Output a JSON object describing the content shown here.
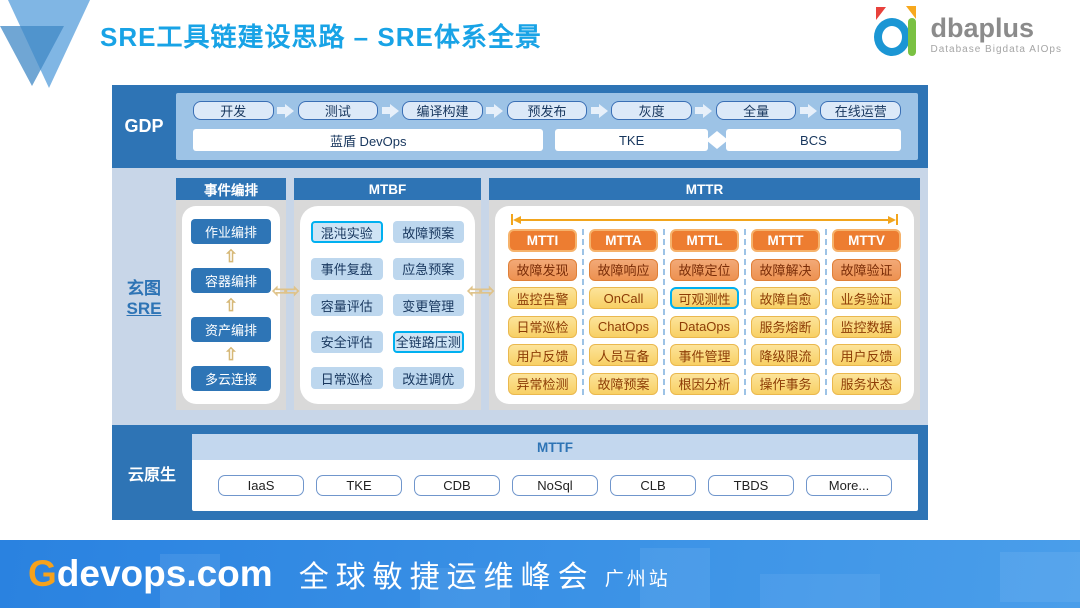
{
  "header": {
    "title": "SRE工具链建设思路 – SRE体系全景",
    "logo": {
      "name": "dbaplus",
      "tagline": "Database  Bigdata  AIOps"
    }
  },
  "icons": {
    "up_arrow": "⇧",
    "left_arrow": "⇦",
    "right_arrow": "⇨"
  },
  "gdp": {
    "label": "GDP",
    "stages": [
      "开发",
      "测试",
      "编译构建",
      "预发布",
      "灰度",
      "全量",
      "在线运营"
    ],
    "devops": "蓝盾 DevOps",
    "tke": "TKE",
    "bcs": "BCS"
  },
  "sre": {
    "label_top": "玄图",
    "label_bottom": "SRE",
    "orchestration": {
      "header": "事件编排",
      "items": [
        "作业编排",
        "容器编排",
        "资产编排",
        "多云连接"
      ]
    },
    "mtbf": {
      "header": "MTBF",
      "items": [
        "混沌实验",
        "故障预案",
        "事件复盘",
        "应急预案",
        "容量评估",
        "变更管理",
        "安全评估",
        "全链路压测",
        "日常巡检",
        "改进调优"
      ]
    },
    "mttr": {
      "header": "MTTR",
      "columns": [
        {
          "header": "MTTI",
          "items": [
            "故障发现",
            "监控告警",
            "日常巡检",
            "用户反馈",
            "异常检测"
          ]
        },
        {
          "header": "MTTA",
          "items": [
            "故障响应",
            "OnCall",
            "ChatOps",
            "人员互备",
            "故障预案"
          ]
        },
        {
          "header": "MTTL",
          "items": [
            "故障定位",
            "可观测性",
            "DataOps",
            "事件管理",
            "根因分析"
          ]
        },
        {
          "header": "MTTT",
          "items": [
            "故障解决",
            "故障自愈",
            "服务熔断",
            "降级限流",
            "操作事务"
          ]
        },
        {
          "header": "MTTV",
          "items": [
            "故障验证",
            "业务验证",
            "监控数据",
            "用户反馈",
            "服务状态"
          ]
        }
      ]
    }
  },
  "cloud": {
    "label": "云原生",
    "header": "MTTF",
    "items": [
      "IaaS",
      "TKE",
      "CDB",
      "NoSql",
      "CLB",
      "TBDS",
      "More..."
    ]
  },
  "footer": {
    "brand_g": "G",
    "brand_rest": "devops.com",
    "event": "全球敏捷运维峰会",
    "city": "广州站"
  },
  "colors": {
    "band_blue": "#2e74b5",
    "title_blue": "#18a3e6",
    "highlight_cyan": "#00b0f0",
    "header_orange": "#ed7d31",
    "cell_yellow": "#f8d064"
  }
}
